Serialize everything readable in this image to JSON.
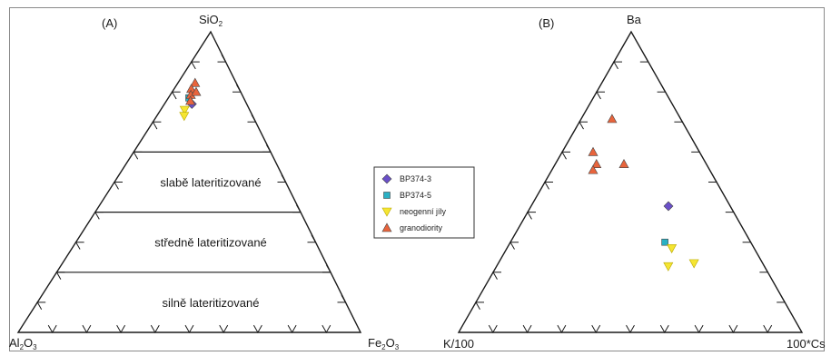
{
  "chart_data": [
    {
      "type": "ternary",
      "panel_label": "(A)",
      "vertices": {
        "top": "SiO2",
        "left": "Al2O3",
        "right": "Fe2O3"
      },
      "vertex_labels": {
        "top": {
          "main": "SiO",
          "sub": "2"
        },
        "left": {
          "main": "Al",
          "sub1": "2",
          "mid": "O",
          "sub2": "3"
        },
        "right": {
          "main": "Fe",
          "sub1": "2",
          "mid": "O",
          "sub2": "3"
        }
      },
      "zones": [
        {
          "label": "slabě lateritizované",
          "top_fraction_range": [
            0.4,
            0.6
          ]
        },
        {
          "label": "středně lateritizované",
          "top_fraction_range": [
            0.2,
            0.4
          ]
        },
        {
          "label": "silně lateritizované",
          "top_fraction_range": [
            0.0,
            0.2
          ]
        }
      ],
      "series": [
        {
          "name": "BP374-3",
          "points": [
            {
              "top": 0.76,
              "left": 0.16,
              "right": 0.08
            }
          ]
        },
        {
          "name": "BP374-5",
          "points": [
            {
              "top": 0.78,
              "left": 0.16,
              "right": 0.06
            }
          ]
        },
        {
          "name": "neogenní jíly",
          "points": [
            {
              "top": 0.74,
              "left": 0.19,
              "right": 0.07
            },
            {
              "top": 0.72,
              "left": 0.2,
              "right": 0.08
            }
          ]
        },
        {
          "name": "granodiority",
          "points": [
            {
              "top": 0.83,
              "left": 0.12,
              "right": 0.05
            },
            {
              "top": 0.81,
              "left": 0.14,
              "right": 0.05
            },
            {
              "top": 0.79,
              "left": 0.15,
              "right": 0.06
            },
            {
              "top": 0.77,
              "left": 0.16,
              "right": 0.07
            },
            {
              "top": 0.8,
              "left": 0.13,
              "right": 0.07
            }
          ]
        }
      ]
    },
    {
      "type": "ternary",
      "panel_label": "(B)",
      "vertices": {
        "top": "Ba",
        "left": "K/100",
        "right": "100*Cs"
      },
      "series": [
        {
          "name": "BP374-3",
          "points": [
            {
              "top": 0.42,
              "left": 0.18,
              "right": 0.4
            }
          ]
        },
        {
          "name": "BP374-5",
          "points": [
            {
              "top": 0.3,
              "left": 0.25,
              "right": 0.45
            }
          ]
        },
        {
          "name": "neogenní jíly",
          "points": [
            {
              "top": 0.28,
              "left": 0.24,
              "right": 0.48
            },
            {
              "top": 0.22,
              "left": 0.28,
              "right": 0.5
            },
            {
              "top": 0.23,
              "left": 0.2,
              "right": 0.57
            }
          ]
        },
        {
          "name": "granodiority",
          "points": [
            {
              "top": 0.71,
              "left": 0.2,
              "right": 0.09
            },
            {
              "top": 0.6,
              "left": 0.31,
              "right": 0.09
            },
            {
              "top": 0.56,
              "left": 0.32,
              "right": 0.12
            },
            {
              "top": 0.54,
              "left": 0.34,
              "right": 0.12
            },
            {
              "top": 0.56,
              "left": 0.24,
              "right": 0.2
            }
          ]
        }
      ]
    }
  ],
  "legend": {
    "items": [
      {
        "label": "BP374-3",
        "marker": "diamond",
        "color": "#6a4fc9"
      },
      {
        "label": "BP374-5",
        "marker": "square",
        "color": "#2ab0c4"
      },
      {
        "label": "neogenní jíly",
        "marker": "triangle-down",
        "color": "#f5e532"
      },
      {
        "label": "granodiority",
        "marker": "triangle-up",
        "color": "#e8643c"
      }
    ]
  },
  "colors": {
    "axis": "#1a1a1a",
    "frame": "#8a8a8a"
  }
}
